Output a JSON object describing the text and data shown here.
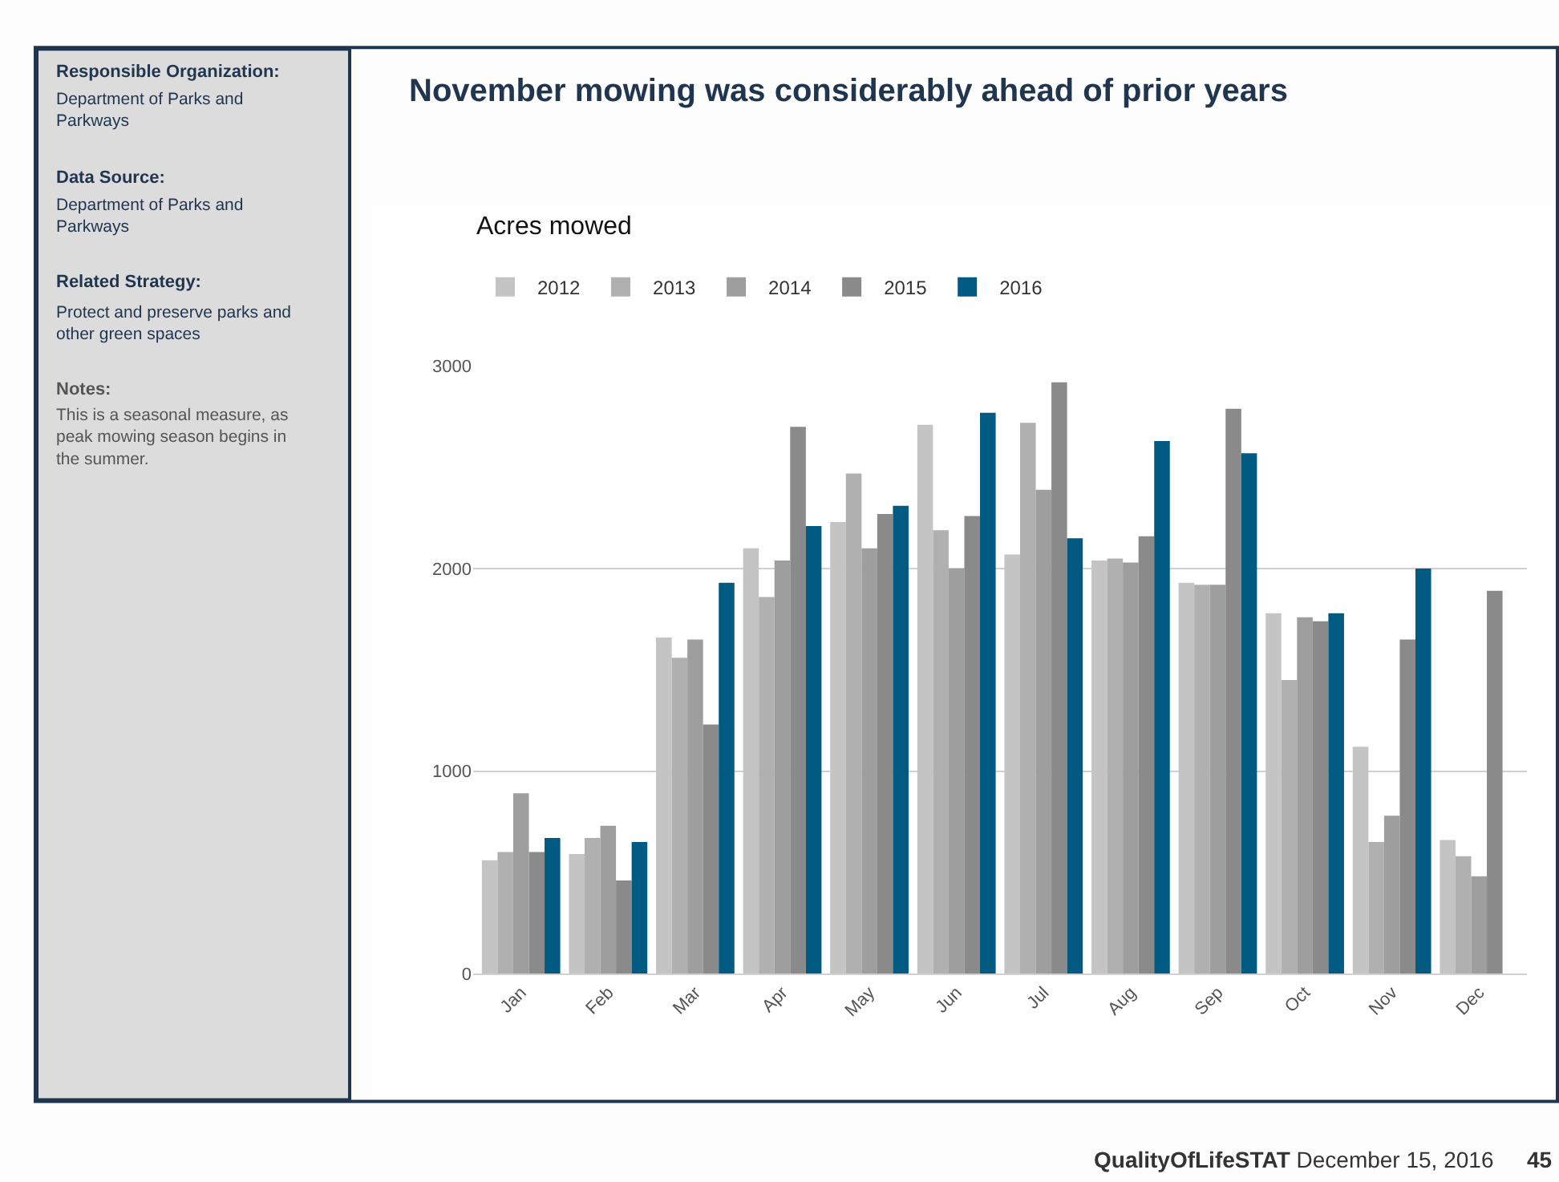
{
  "chart_data": {
    "type": "bar",
    "title": "November mowing was considerably ahead of prior years",
    "subtitle": "Acres mowed",
    "categories": [
      "Jan",
      "Feb",
      "Mar",
      "Apr",
      "May",
      "Jun",
      "Jul",
      "Aug",
      "Sep",
      "Oct",
      "Nov",
      "Dec"
    ],
    "series": [
      {
        "name": "2012",
        "color": "#c4c4c4",
        "values": [
          560,
          590,
          1660,
          2100,
          2230,
          2710,
          2070,
          2040,
          1930,
          1780,
          1120,
          660
        ]
      },
      {
        "name": "2013",
        "color": "#b0b0b0",
        "values": [
          600,
          670,
          1560,
          1860,
          2470,
          2190,
          2720,
          2050,
          1920,
          1450,
          650,
          580
        ]
      },
      {
        "name": "2014",
        "color": "#9e9e9e",
        "values": [
          890,
          730,
          1650,
          2040,
          2100,
          2000,
          2390,
          2030,
          1920,
          1760,
          780,
          480
        ]
      },
      {
        "name": "2015",
        "color": "#8a8a8a",
        "values": [
          600,
          460,
          1230,
          2700,
          2270,
          2260,
          2920,
          2160,
          2790,
          1740,
          1650,
          1890
        ]
      },
      {
        "name": "2016",
        "color": "#005a82",
        "values": [
          670,
          650,
          1930,
          2210,
          2310,
          2770,
          2150,
          2630,
          2570,
          1780,
          2000,
          null
        ]
      }
    ],
    "ylim": [
      0,
      3000
    ],
    "yticks": [
      0,
      1000,
      2000,
      3000
    ],
    "grid": "y",
    "legend": "top left",
    "annotations": [
      "Responsible Organization:",
      "Department of Parks and Parkways",
      "Data Source:",
      "Department of Parks and Parkways",
      "Related Strategy:",
      "Protect and preserve parks and other green spaces",
      "Notes:",
      "This is a seasonal measure, as peak mowing season begins in the summer.",
      "QualityOfLifeSTAT December 15, 2016",
      "45"
    ]
  }
}
